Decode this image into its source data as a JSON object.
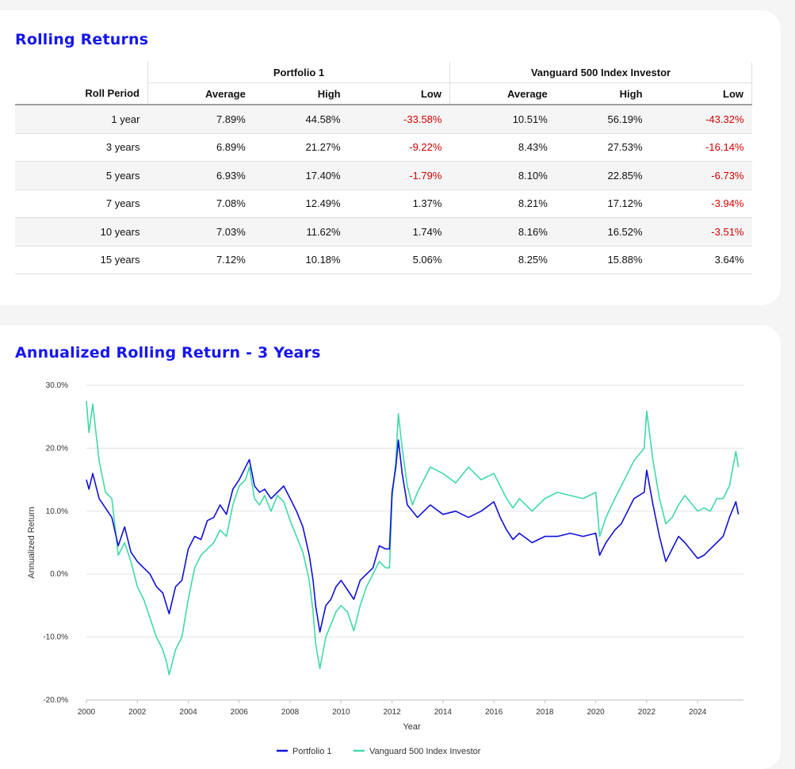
{
  "rolling_returns": {
    "title": "Rolling Returns",
    "group_headers": [
      "Portfolio 1",
      "Vanguard 500 Index Investor"
    ],
    "columns": [
      "Roll Period",
      "Average",
      "High",
      "Low",
      "Average",
      "High",
      "Low"
    ],
    "rows": [
      {
        "period": "1 year",
        "p1_avg": "7.89%",
        "p1_high": "44.58%",
        "p1_low": "-33.58%",
        "vfinx_avg": "10.51%",
        "vfinx_high": "56.19%",
        "vfinx_low": "-43.32%"
      },
      {
        "period": "3 years",
        "p1_avg": "6.89%",
        "p1_high": "21.27%",
        "p1_low": "-9.22%",
        "vfinx_avg": "8.43%",
        "vfinx_high": "27.53%",
        "vfinx_low": "-16.14%"
      },
      {
        "period": "5 years",
        "p1_avg": "6.93%",
        "p1_high": "17.40%",
        "p1_low": "-1.79%",
        "vfinx_avg": "8.10%",
        "vfinx_high": "22.85%",
        "vfinx_low": "-6.73%"
      },
      {
        "period": "7 years",
        "p1_avg": "7.08%",
        "p1_high": "12.49%",
        "p1_low": "1.37%",
        "vfinx_avg": "8.21%",
        "vfinx_high": "17.12%",
        "vfinx_low": "-3.94%"
      },
      {
        "period": "10 years",
        "p1_avg": "7.03%",
        "p1_high": "11.62%",
        "p1_low": "1.74%",
        "vfinx_avg": "8.16%",
        "vfinx_high": "16.52%",
        "vfinx_low": "-3.51%"
      },
      {
        "period": "15 years",
        "p1_avg": "7.12%",
        "p1_high": "10.18%",
        "p1_low": "5.06%",
        "vfinx_avg": "8.25%",
        "vfinx_high": "15.88%",
        "vfinx_low": "3.64%"
      }
    ],
    "negative_color": "#d10000"
  },
  "chart_data": {
    "type": "line",
    "title": "Annualized Rolling Return - 3 Years",
    "xlabel": "Year",
    "ylabel": "Annualized Return",
    "xlim": [
      2000,
      2025.8
    ],
    "ylim": [
      -20,
      30
    ],
    "x_ticks": [
      "2000",
      "2002",
      "2004",
      "2006",
      "2008",
      "2010",
      "2012",
      "2014",
      "2016",
      "2018",
      "2020",
      "2022",
      "2024"
    ],
    "y_ticks": [
      "-20.0%",
      "-10.0%",
      "0.0%",
      "10.0%",
      "20.0%",
      "30.0%"
    ],
    "grid": true,
    "legend_position": "bottom",
    "series": [
      {
        "name": "Portfolio 1",
        "color": "#1010d8",
        "points": [
          [
            2000.0,
            15.0
          ],
          [
            2000.1,
            13.5
          ],
          [
            2000.25,
            16.0
          ],
          [
            2000.5,
            12.0
          ],
          [
            2000.75,
            10.5
          ],
          [
            2001.0,
            9.0
          ],
          [
            2001.25,
            4.5
          ],
          [
            2001.5,
            7.5
          ],
          [
            2001.75,
            3.5
          ],
          [
            2002.0,
            2.0
          ],
          [
            2002.25,
            1.0
          ],
          [
            2002.5,
            0.0
          ],
          [
            2002.75,
            -2.0
          ],
          [
            2003.0,
            -3.0
          ],
          [
            2003.15,
            -5.0
          ],
          [
            2003.25,
            -6.3
          ],
          [
            2003.5,
            -2.0
          ],
          [
            2003.75,
            -1.0
          ],
          [
            2004.0,
            4.0
          ],
          [
            2004.25,
            6.0
          ],
          [
            2004.5,
            5.5
          ],
          [
            2004.75,
            8.5
          ],
          [
            2005.0,
            9.0
          ],
          [
            2005.25,
            11.0
          ],
          [
            2005.5,
            9.5
          ],
          [
            2005.75,
            13.5
          ],
          [
            2006.0,
            15.0
          ],
          [
            2006.25,
            17.0
          ],
          [
            2006.4,
            18.2
          ],
          [
            2006.6,
            14.0
          ],
          [
            2006.8,
            13.0
          ],
          [
            2007.0,
            13.5
          ],
          [
            2007.25,
            12.0
          ],
          [
            2007.5,
            13.0
          ],
          [
            2007.75,
            14.0
          ],
          [
            2008.0,
            12.0
          ],
          [
            2008.25,
            10.0
          ],
          [
            2008.5,
            7.5
          ],
          [
            2008.75,
            3.0
          ],
          [
            2008.9,
            -1.0
          ],
          [
            2009.0,
            -5.0
          ],
          [
            2009.17,
            -9.2
          ],
          [
            2009.4,
            -5.0
          ],
          [
            2009.6,
            -4.0
          ],
          [
            2009.8,
            -2.0
          ],
          [
            2010.0,
            -1.0
          ],
          [
            2010.25,
            -2.5
          ],
          [
            2010.5,
            -4.0
          ],
          [
            2010.75,
            -1.0
          ],
          [
            2011.0,
            0.0
          ],
          [
            2011.25,
            1.0
          ],
          [
            2011.5,
            4.5
          ],
          [
            2011.75,
            4.0
          ],
          [
            2011.9,
            4.0
          ],
          [
            2012.0,
            13.0
          ],
          [
            2012.15,
            17.0
          ],
          [
            2012.25,
            21.3
          ],
          [
            2012.4,
            16.0
          ],
          [
            2012.6,
            11.0
          ],
          [
            2012.8,
            10.0
          ],
          [
            2013.0,
            9.0
          ],
          [
            2013.5,
            11.0
          ],
          [
            2014.0,
            9.5
          ],
          [
            2014.5,
            10.0
          ],
          [
            2015.0,
            9.0
          ],
          [
            2015.5,
            10.0
          ],
          [
            2016.0,
            11.5
          ],
          [
            2016.25,
            9.0
          ],
          [
            2016.5,
            7.0
          ],
          [
            2016.75,
            5.5
          ],
          [
            2017.0,
            6.5
          ],
          [
            2017.5,
            5.0
          ],
          [
            2018.0,
            6.0
          ],
          [
            2018.5,
            6.0
          ],
          [
            2019.0,
            6.5
          ],
          [
            2019.5,
            6.0
          ],
          [
            2020.0,
            6.5
          ],
          [
            2020.15,
            3.0
          ],
          [
            2020.4,
            5.0
          ],
          [
            2020.75,
            7.0
          ],
          [
            2021.0,
            8.0
          ],
          [
            2021.5,
            12.0
          ],
          [
            2021.9,
            13.0
          ],
          [
            2022.0,
            16.5
          ],
          [
            2022.25,
            11.0
          ],
          [
            2022.5,
            6.0
          ],
          [
            2022.75,
            2.0
          ],
          [
            2023.0,
            4.0
          ],
          [
            2023.25,
            6.0
          ],
          [
            2023.5,
            5.0
          ],
          [
            2024.0,
            2.5
          ],
          [
            2024.25,
            3.0
          ],
          [
            2024.5,
            4.0
          ],
          [
            2024.75,
            5.0
          ],
          [
            2025.0,
            6.0
          ],
          [
            2025.25,
            9.0
          ],
          [
            2025.5,
            11.5
          ],
          [
            2025.6,
            9.5
          ]
        ]
      },
      {
        "name": "Vanguard 500 Index Investor",
        "color": "#40d9a6",
        "points": [
          [
            2000.0,
            27.5
          ],
          [
            2000.1,
            22.5
          ],
          [
            2000.25,
            27.0
          ],
          [
            2000.5,
            18.0
          ],
          [
            2000.75,
            13.0
          ],
          [
            2001.0,
            12.0
          ],
          [
            2001.25,
            3.0
          ],
          [
            2001.5,
            5.0
          ],
          [
            2001.75,
            2.0
          ],
          [
            2002.0,
            -2.0
          ],
          [
            2002.25,
            -4.0
          ],
          [
            2002.5,
            -7.0
          ],
          [
            2002.75,
            -10.0
          ],
          [
            2003.0,
            -12.0
          ],
          [
            2003.15,
            -14.0
          ],
          [
            2003.25,
            -16.0
          ],
          [
            2003.5,
            -12.0
          ],
          [
            2003.75,
            -10.0
          ],
          [
            2004.0,
            -4.0
          ],
          [
            2004.25,
            1.0
          ],
          [
            2004.5,
            3.0
          ],
          [
            2004.75,
            4.0
          ],
          [
            2005.0,
            5.0
          ],
          [
            2005.25,
            7.0
          ],
          [
            2005.5,
            6.0
          ],
          [
            2005.75,
            11.0
          ],
          [
            2006.0,
            14.0
          ],
          [
            2006.25,
            15.0
          ],
          [
            2006.4,
            17.0
          ],
          [
            2006.6,
            12.0
          ],
          [
            2006.8,
            11.0
          ],
          [
            2007.0,
            12.5
          ],
          [
            2007.25,
            10.0
          ],
          [
            2007.5,
            12.5
          ],
          [
            2007.75,
            11.5
          ],
          [
            2008.0,
            8.5
          ],
          [
            2008.25,
            6.0
          ],
          [
            2008.5,
            3.5
          ],
          [
            2008.75,
            -1.0
          ],
          [
            2008.9,
            -6.0
          ],
          [
            2009.0,
            -11.0
          ],
          [
            2009.17,
            -15.0
          ],
          [
            2009.4,
            -10.0
          ],
          [
            2009.6,
            -8.0
          ],
          [
            2009.8,
            -6.0
          ],
          [
            2010.0,
            -5.0
          ],
          [
            2010.25,
            -6.0
          ],
          [
            2010.5,
            -9.0
          ],
          [
            2010.75,
            -5.0
          ],
          [
            2011.0,
            -2.0
          ],
          [
            2011.25,
            0.0
          ],
          [
            2011.5,
            2.0
          ],
          [
            2011.75,
            1.0
          ],
          [
            2011.9,
            1.0
          ],
          [
            2012.0,
            12.0
          ],
          [
            2012.15,
            18.0
          ],
          [
            2012.25,
            25.5
          ],
          [
            2012.4,
            20.0
          ],
          [
            2012.6,
            14.0
          ],
          [
            2012.8,
            11.0
          ],
          [
            2013.0,
            13.0
          ],
          [
            2013.5,
            17.0
          ],
          [
            2014.0,
            16.0
          ],
          [
            2014.5,
            14.5
          ],
          [
            2015.0,
            17.0
          ],
          [
            2015.5,
            15.0
          ],
          [
            2016.0,
            16.0
          ],
          [
            2016.25,
            14.0
          ],
          [
            2016.5,
            12.0
          ],
          [
            2016.75,
            10.5
          ],
          [
            2017.0,
            12.0
          ],
          [
            2017.5,
            10.0
          ],
          [
            2018.0,
            12.0
          ],
          [
            2018.5,
            13.0
          ],
          [
            2019.0,
            12.5
          ],
          [
            2019.5,
            12.0
          ],
          [
            2020.0,
            13.0
          ],
          [
            2020.15,
            6.0
          ],
          [
            2020.4,
            9.0
          ],
          [
            2020.75,
            12.0
          ],
          [
            2021.0,
            14.0
          ],
          [
            2021.5,
            18.0
          ],
          [
            2021.9,
            20.0
          ],
          [
            2022.0,
            25.9
          ],
          [
            2022.25,
            18.0
          ],
          [
            2022.5,
            12.0
          ],
          [
            2022.75,
            8.0
          ],
          [
            2023.0,
            9.0
          ],
          [
            2023.25,
            11.0
          ],
          [
            2023.5,
            12.5
          ],
          [
            2024.0,
            10.0
          ],
          [
            2024.25,
            10.5
          ],
          [
            2024.5,
            10.0
          ],
          [
            2024.75,
            12.0
          ],
          [
            2025.0,
            12.0
          ],
          [
            2025.25,
            14.0
          ],
          [
            2025.5,
            19.5
          ],
          [
            2025.6,
            17.0
          ]
        ]
      }
    ]
  }
}
